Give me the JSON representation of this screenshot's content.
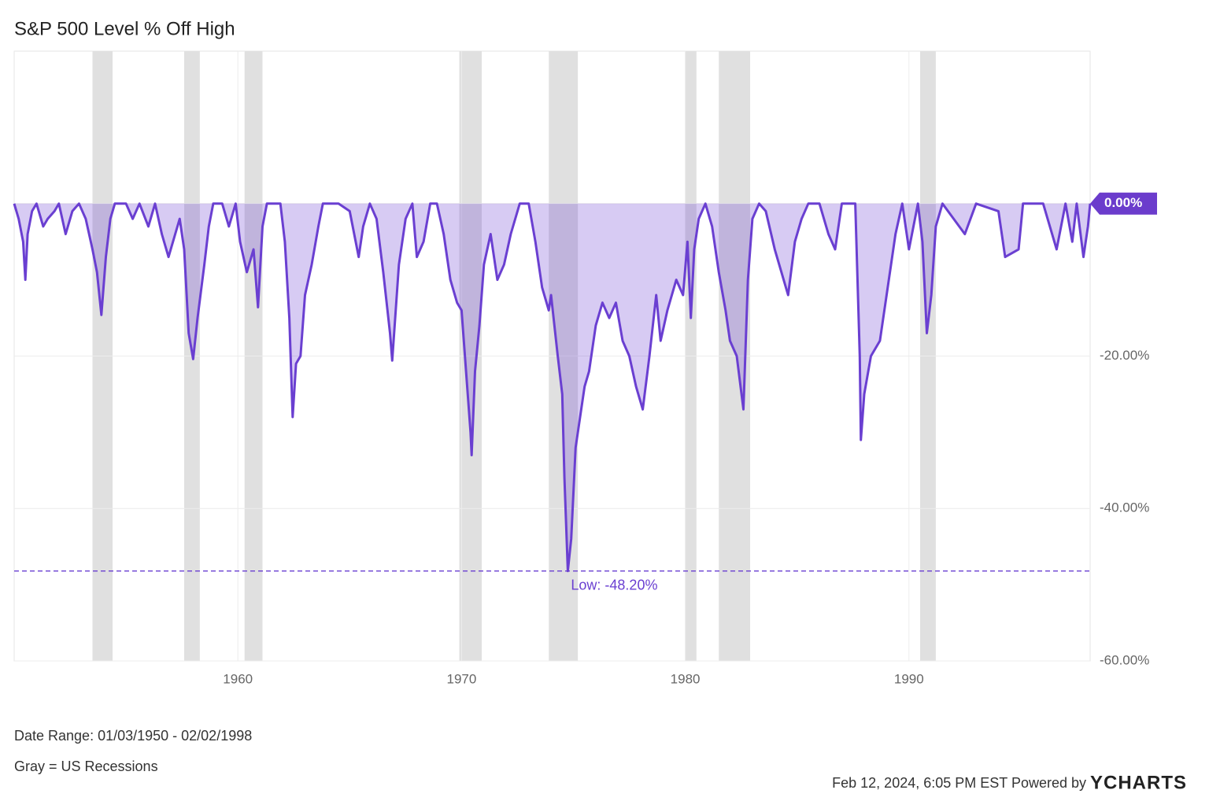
{
  "chart_data": {
    "type": "line",
    "title": "S&P 500 Level % Off High",
    "x": [
      1950.0,
      1950.2,
      1950.4,
      1950.5,
      1950.6,
      1950.8,
      1951.0,
      1951.3,
      1951.5,
      1951.8,
      1952.0,
      1952.3,
      1952.6,
      1952.9,
      1953.2,
      1953.5,
      1953.7,
      1953.9,
      1954.1,
      1954.3,
      1954.5,
      1955.0,
      1955.3,
      1955.6,
      1956.0,
      1956.3,
      1956.6,
      1956.9,
      1957.2,
      1957.4,
      1957.6,
      1957.8,
      1958.0,
      1958.2,
      1958.5,
      1958.7,
      1958.9,
      1959.3,
      1959.6,
      1959.9,
      1960.1,
      1960.4,
      1960.7,
      1960.9,
      1961.1,
      1961.3,
      1961.9,
      1962.1,
      1962.3,
      1962.45,
      1962.6,
      1962.8,
      1963.0,
      1963.3,
      1963.6,
      1963.8,
      1964.5,
      1965.0,
      1965.4,
      1965.6,
      1965.9,
      1966.2,
      1966.5,
      1966.8,
      1966.9,
      1967.2,
      1967.5,
      1967.8,
      1968.0,
      1968.3,
      1968.6,
      1968.9,
      1969.2,
      1969.5,
      1969.8,
      1970.0,
      1970.2,
      1970.4,
      1970.45,
      1970.6,
      1970.8,
      1971.0,
      1971.3,
      1971.6,
      1971.9,
      1972.2,
      1972.6,
      1973.0,
      1973.3,
      1973.6,
      1973.9,
      1974.0,
      1974.3,
      1974.5,
      1974.6,
      1974.75,
      1974.9,
      1975.1,
      1975.3,
      1975.5,
      1975.7,
      1976.0,
      1976.3,
      1976.6,
      1976.9,
      1977.2,
      1977.5,
      1977.8,
      1978.1,
      1978.4,
      1978.7,
      1978.9,
      1979.2,
      1979.6,
      1979.9,
      1980.1,
      1980.25,
      1980.4,
      1980.6,
      1980.9,
      1981.2,
      1981.5,
      1981.8,
      1982.0,
      1982.3,
      1982.6,
      1982.8,
      1983.0,
      1983.3,
      1983.6,
      1984.0,
      1984.4,
      1984.6,
      1984.9,
      1985.2,
      1985.5,
      1986.0,
      1986.4,
      1986.7,
      1987.0,
      1987.6,
      1987.8,
      1987.85,
      1988.0,
      1988.3,
      1988.7,
      1989.0,
      1989.4,
      1989.7,
      1990.0,
      1990.4,
      1990.6,
      1990.8,
      1991.0,
      1991.2,
      1991.5,
      1992.0,
      1992.5,
      1993.0,
      1994.0,
      1994.3,
      1994.9,
      1995.1,
      1996.0,
      1996.6,
      1997.0,
      1997.3,
      1997.5,
      1997.8,
      1998.0,
      1998.1
    ],
    "series": [
      {
        "name": "S&P 500 Level % Off High",
        "color": "#6a3fd1",
        "values": [
          0,
          -2,
          -5,
          -10,
          -4,
          -1,
          0,
          -3,
          -2,
          -1,
          0,
          -4,
          -1,
          0,
          -2,
          -6,
          -9,
          -14.6,
          -7,
          -2,
          0,
          0,
          -2,
          0,
          -3,
          0,
          -4,
          -7,
          -4,
          -2,
          -6,
          -17,
          -20.4,
          -15,
          -8,
          -3,
          0,
          0,
          -3,
          0,
          -5,
          -9,
          -6,
          -13.6,
          -3,
          0,
          0,
          -5,
          -15,
          -28,
          -21,
          -20,
          -12,
          -8,
          -3,
          0,
          0,
          -1,
          -7,
          -3,
          0,
          -2,
          -9,
          -17,
          -20.6,
          -8,
          -2,
          0,
          -7,
          -5,
          0,
          0,
          -4,
          -10,
          -13,
          -14,
          -22,
          -30,
          -33,
          -22,
          -16,
          -8,
          -4,
          -10,
          -8,
          -4,
          0,
          0,
          -5,
          -11,
          -14,
          -12,
          -20,
          -25,
          -36,
          -48.2,
          -44,
          -32,
          -28,
          -24,
          -22,
          -16,
          -13,
          -15,
          -13,
          -18,
          -20,
          -24,
          -27,
          -20,
          -12,
          -18,
          -14,
          -10,
          -12,
          -5,
          -15,
          -6,
          -2,
          0,
          -3,
          -9,
          -14,
          -18,
          -20,
          -27,
          -10,
          -2,
          0,
          -1,
          -6,
          -10,
          -12,
          -5,
          -2,
          0,
          0,
          -4,
          -6,
          0,
          0,
          -20,
          -31,
          -25,
          -20,
          -18,
          -12,
          -4,
          0,
          -6,
          0,
          -5,
          -17,
          -12,
          -3,
          0,
          -2,
          -4,
          0,
          -1,
          -7,
          -6,
          0,
          0,
          -6,
          0,
          -5,
          0,
          -7,
          -3,
          0
        ]
      }
    ],
    "recessions": [
      [
        1953.5,
        1954.4
      ],
      [
        1957.6,
        1958.3
      ],
      [
        1960.3,
        1961.1
      ],
      [
        1969.9,
        1970.9
      ],
      [
        1973.9,
        1975.2
      ],
      [
        1980.0,
        1980.5
      ],
      [
        1981.5,
        1982.9
      ],
      [
        1990.5,
        1991.2
      ]
    ],
    "low": {
      "value": -48.2,
      "label": "Low: -48.20%"
    },
    "xlim": [
      1950.0,
      1998.1
    ],
    "xticks": [
      1960,
      1970,
      1980,
      1990
    ],
    "ylim": [
      -60,
      20
    ],
    "yticks": [
      {
        "value": -60,
        "label": "-60.00%"
      },
      {
        "value": -40,
        "label": "-40.00%"
      },
      {
        "value": -20,
        "label": "-20.00%"
      },
      {
        "value": 0,
        "label": "0.00%"
      }
    ],
    "grid": true,
    "date_range": "Date Range: 01/03/1950 - 02/02/1998",
    "note": "Gray = US Recessions",
    "timestamp": "Feb 12, 2024, 6:05 PM EST Powered by",
    "brand": "YCHARTS"
  }
}
